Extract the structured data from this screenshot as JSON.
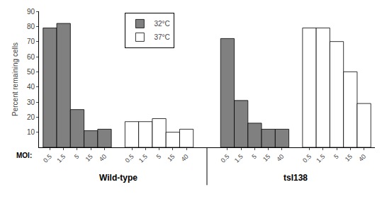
{
  "chart_data": {
    "type": "bar",
    "categories": [
      "0.5",
      "1.5",
      "5",
      "15",
      "40",
      "0.5",
      "1.5",
      "5",
      "15",
      "40",
      "0.5",
      "1.5",
      "5",
      "15",
      "40",
      "0.5",
      "1.5",
      "5",
      "15",
      "40"
    ],
    "series": [
      {
        "name": "32°C",
        "color": "#808080",
        "values": [
          79,
          82,
          25,
          11,
          12,
          null,
          null,
          null,
          null,
          null,
          72,
          31,
          16,
          12,
          12,
          null,
          null,
          null,
          null,
          null
        ]
      },
      {
        "name": "37°C",
        "color": "#ffffff",
        "values": [
          null,
          null,
          null,
          null,
          null,
          17,
          17,
          19,
          10,
          12,
          null,
          null,
          null,
          null,
          null,
          79,
          79,
          70,
          50,
          29
        ]
      }
    ],
    "ylabel": "Percent remaining cells",
    "ylim": [
      0,
      90
    ],
    "yticks": [
      10,
      20,
      30,
      40,
      50,
      60,
      70,
      80,
      90
    ],
    "grid": false,
    "legend": "upper left",
    "groups": [
      "Wild-type",
      "tsI138"
    ],
    "annotations": [
      "MOI:"
    ]
  }
}
